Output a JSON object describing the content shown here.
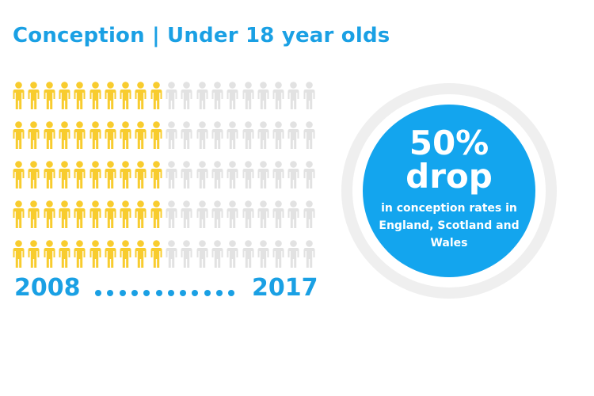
{
  "title": "Conception | Under 18 year olds",
  "pictogram": {
    "rows": 5,
    "per_row": 20,
    "filled_per_row": 10,
    "colors": {
      "filled": "#f8cc2e",
      "empty": "#e2e2e2"
    },
    "icon": "person-icon"
  },
  "timeline": {
    "start_year": "2008",
    "end_year": "2017",
    "dot_count": 12,
    "color": "#1aa0e4"
  },
  "stat": {
    "percent": "50%",
    "word": "drop",
    "description": "in conception rates in England, Scotland and Wales",
    "circle_color": "#13a5ee",
    "ring_color": "#efefef"
  }
}
